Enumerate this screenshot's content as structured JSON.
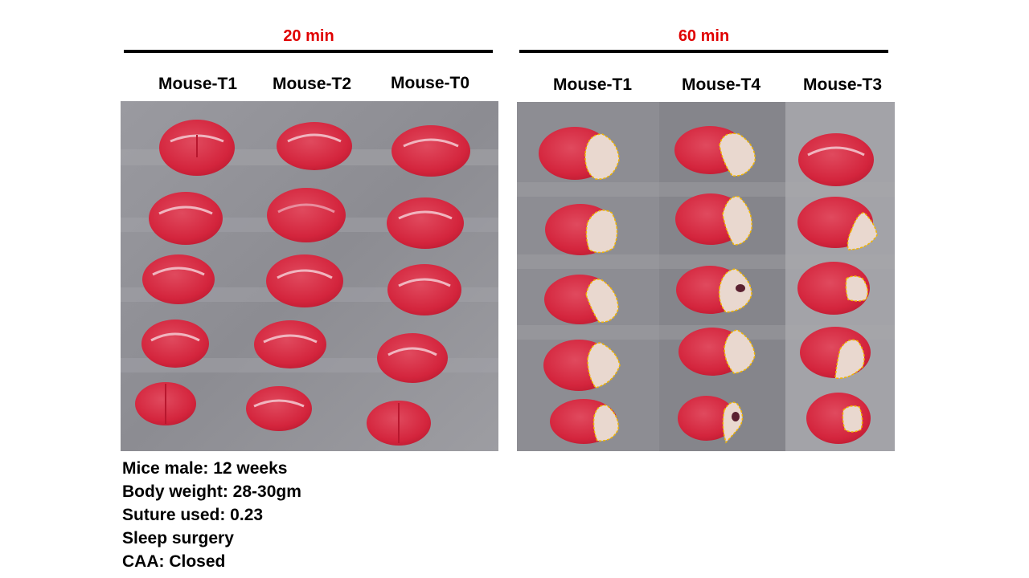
{
  "groups": [
    {
      "title": "20 min",
      "columns": [
        "Mouse-T1",
        "Mouse-T2",
        "Mouse-T0"
      ]
    },
    {
      "title": "60 min",
      "columns": [
        "Mouse-T1",
        "Mouse-T4",
        "Mouse-T3"
      ]
    }
  ],
  "notes": [
    "Mice male: 12 weeks",
    "Body weight: 28-30gm",
    "Suture used: 0.23",
    "Sleep surgery",
    "CAA: Closed"
  ],
  "colors": {
    "title_red": "#e00000",
    "tissue_red": "#d8283f",
    "infarct": "#e9d8cf",
    "outline": "#f2b600",
    "panel_gray": "#8f8f96"
  }
}
